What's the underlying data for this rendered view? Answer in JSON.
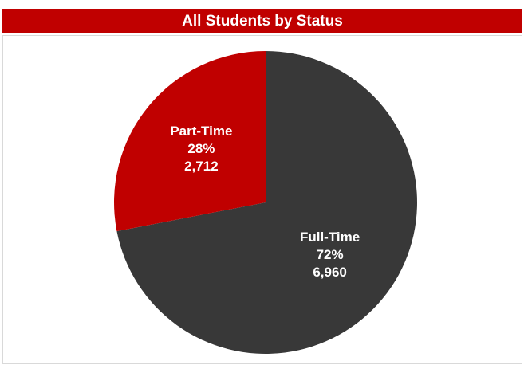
{
  "chart_data": {
    "type": "pie",
    "title": "All Students by Status",
    "categories": [
      "Full-Time",
      "Part-Time"
    ],
    "values": [
      6960,
      2712
    ],
    "value_labels": [
      "6,960",
      "2,712"
    ],
    "percents": [
      72,
      28
    ],
    "percent_labels": [
      "72%",
      "28%"
    ],
    "colors": [
      "#383838",
      "#c00000"
    ]
  }
}
